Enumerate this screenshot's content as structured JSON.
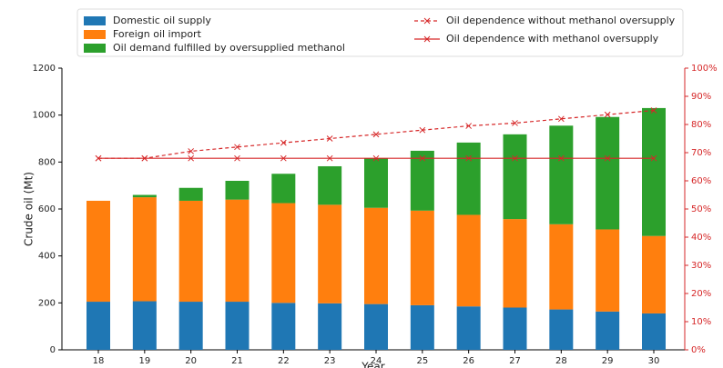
{
  "chart_data": {
    "type": "bar",
    "stacked": true,
    "xlabel": "Year",
    "ylabel": "Crude oil (Mt)",
    "categories": [
      "18",
      "19",
      "20",
      "21",
      "22",
      "23",
      "24",
      "25",
      "26",
      "27",
      "28",
      "29",
      "30"
    ],
    "series": [
      {
        "name": "Domestic oil supply",
        "type": "bar",
        "color": "#1f77b4",
        "values": [
          205,
          207,
          205,
          205,
          200,
          198,
          195,
          190,
          185,
          180,
          172,
          163,
          155
        ]
      },
      {
        "name": "Foreign oil import",
        "type": "bar",
        "color": "#ff7f0e",
        "values": [
          430,
          443,
          430,
          435,
          425,
          420,
          410,
          403,
          390,
          377,
          363,
          350,
          330
        ]
      },
      {
        "name": "Oil demand fulfilled by oversupplied methanol",
        "type": "bar",
        "color": "#2ca02c",
        "values": [
          0,
          10,
          55,
          80,
          125,
          164,
          210,
          255,
          308,
          361,
          420,
          479,
          545
        ]
      },
      {
        "name": "Oil dependence without methanol oversupply",
        "type": "line",
        "axis": "y2",
        "dashed": true,
        "color": "#d62728",
        "values": [
          68,
          68,
          70.5,
          72,
          73.5,
          75,
          76.5,
          78,
          79.5,
          80.5,
          82,
          83.5,
          85
        ]
      },
      {
        "name": "Oil dependence with methanol oversupply",
        "type": "line",
        "axis": "y2",
        "dashed": false,
        "color": "#d62728",
        "values": [
          68,
          68,
          68,
          68,
          68,
          68,
          68,
          68,
          68,
          68,
          68,
          68,
          68
        ]
      }
    ],
    "ylim": [
      0,
      1200
    ],
    "yticks": [
      0,
      200,
      400,
      600,
      800,
      1000,
      1200
    ],
    "y2lim": [
      0,
      100
    ],
    "y2ticks": [
      {
        "value": 0,
        "label": "0%"
      },
      {
        "value": 10,
        "label": "10%"
      },
      {
        "value": 20,
        "label": "20%"
      },
      {
        "value": 30,
        "label": "30%"
      },
      {
        "value": 40,
        "label": "40%"
      },
      {
        "value": 50,
        "label": "50%"
      },
      {
        "value": 60,
        "label": "60%"
      },
      {
        "value": 70,
        "label": "70%"
      },
      {
        "value": 80,
        "label": "80%"
      },
      {
        "value": 90,
        "label": "90%"
      },
      {
        "value": 100,
        "label": "100%"
      }
    ],
    "y2color": "#d62728"
  }
}
